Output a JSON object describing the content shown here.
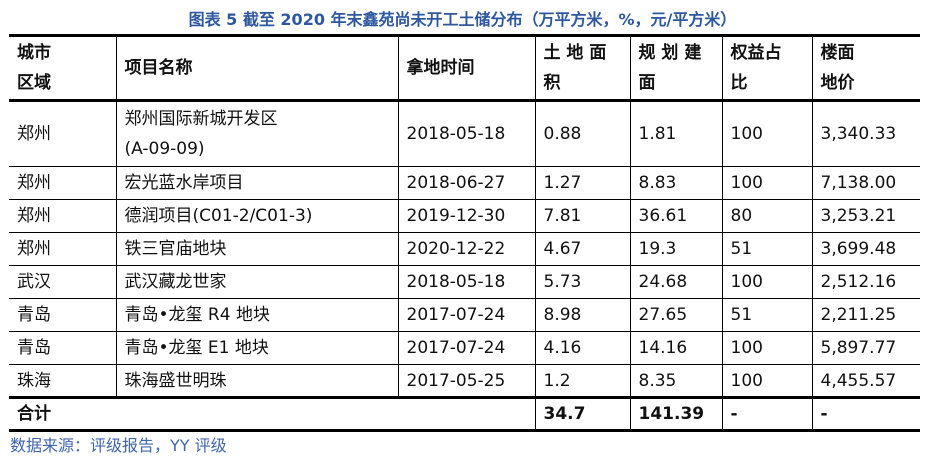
{
  "title": "图表 5 截至 2020 年末鑫苑尚未开工土储分布（万平方米，%，元/平方米）",
  "headers": [
    "城市\n区域",
    "项目名称",
    "拿地时间",
    "土 地 面\n积",
    "规 划 建\n面",
    "权益占\n比",
    "楼面\n地价"
  ],
  "rows": [
    [
      "郑州",
      "郑州国际新城开发区\n(A-09-09)",
      "2018-05-18",
      "0.88",
      "1.81",
      "100",
      "3,340.33"
    ],
    [
      "郑州",
      "宏光蓝水岸项目",
      "2018-06-27",
      "1.27",
      "8.83",
      "100",
      "7,138.00"
    ],
    [
      "郑州",
      "德润项目(C01-2/C01-3)",
      "2019-12-30",
      "7.81",
      "36.61",
      "80",
      "3,253.21"
    ],
    [
      "郑州",
      "铁三官庙地块",
      "2020-12-22",
      "4.67",
      "19.3",
      "51",
      "3,699.48"
    ],
    [
      "武汉",
      "武汉藏龙世家",
      "2018-05-18",
      "5.73",
      "24.68",
      "100",
      "2,512.16"
    ],
    [
      "青岛",
      "青岛•龙玺 R4 地块",
      "2017-07-24",
      "8.98",
      "27.65",
      "51",
      "2,211.25"
    ],
    [
      "青岛",
      "青岛•龙玺 E1 地块",
      "2017-07-24",
      "4.16",
      "14.16",
      "100",
      "5,897.77"
    ],
    [
      "珠海",
      "珠海盛世明珠",
      "2017-05-25",
      "1.2",
      "8.35",
      "100",
      "4,455.57"
    ]
  ],
  "total": {
    "label": "合计",
    "land_area": "34.7",
    "planned_area": "141.39",
    "equity": "-",
    "price": "-"
  },
  "source": "数据来源：评级报告，YY 评级"
}
